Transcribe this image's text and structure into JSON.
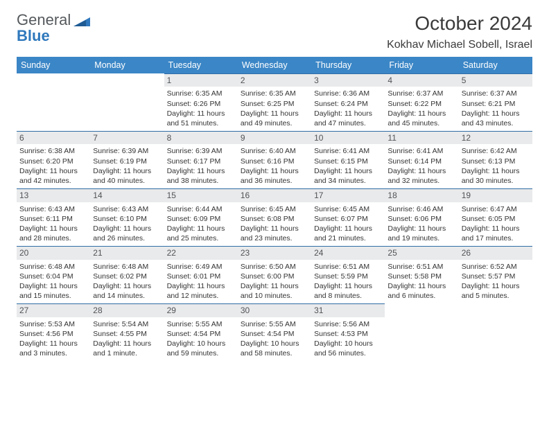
{
  "brand": {
    "part1": "General",
    "part2": "Blue"
  },
  "title": "October 2024",
  "location": "Kokhav Michael Sobell, Israel",
  "colors": {
    "header_bg": "#3b86c6",
    "banner_bg": "#e9eaeb",
    "banner_border": "#2f6da5",
    "text": "#333333",
    "brand_gray": "#55595c",
    "brand_blue": "#2f78bd"
  },
  "weekdays": [
    "Sunday",
    "Monday",
    "Tuesday",
    "Wednesday",
    "Thursday",
    "Friday",
    "Saturday"
  ],
  "weeks": [
    [
      null,
      null,
      {
        "n": "1",
        "sr": "Sunrise: 6:35 AM",
        "ss": "Sunset: 6:26 PM",
        "dl": "Daylight: 11 hours and 51 minutes."
      },
      {
        "n": "2",
        "sr": "Sunrise: 6:35 AM",
        "ss": "Sunset: 6:25 PM",
        "dl": "Daylight: 11 hours and 49 minutes."
      },
      {
        "n": "3",
        "sr": "Sunrise: 6:36 AM",
        "ss": "Sunset: 6:24 PM",
        "dl": "Daylight: 11 hours and 47 minutes."
      },
      {
        "n": "4",
        "sr": "Sunrise: 6:37 AM",
        "ss": "Sunset: 6:22 PM",
        "dl": "Daylight: 11 hours and 45 minutes."
      },
      {
        "n": "5",
        "sr": "Sunrise: 6:37 AM",
        "ss": "Sunset: 6:21 PM",
        "dl": "Daylight: 11 hours and 43 minutes."
      }
    ],
    [
      {
        "n": "6",
        "sr": "Sunrise: 6:38 AM",
        "ss": "Sunset: 6:20 PM",
        "dl": "Daylight: 11 hours and 42 minutes."
      },
      {
        "n": "7",
        "sr": "Sunrise: 6:39 AM",
        "ss": "Sunset: 6:19 PM",
        "dl": "Daylight: 11 hours and 40 minutes."
      },
      {
        "n": "8",
        "sr": "Sunrise: 6:39 AM",
        "ss": "Sunset: 6:17 PM",
        "dl": "Daylight: 11 hours and 38 minutes."
      },
      {
        "n": "9",
        "sr": "Sunrise: 6:40 AM",
        "ss": "Sunset: 6:16 PM",
        "dl": "Daylight: 11 hours and 36 minutes."
      },
      {
        "n": "10",
        "sr": "Sunrise: 6:41 AM",
        "ss": "Sunset: 6:15 PM",
        "dl": "Daylight: 11 hours and 34 minutes."
      },
      {
        "n": "11",
        "sr": "Sunrise: 6:41 AM",
        "ss": "Sunset: 6:14 PM",
        "dl": "Daylight: 11 hours and 32 minutes."
      },
      {
        "n": "12",
        "sr": "Sunrise: 6:42 AM",
        "ss": "Sunset: 6:13 PM",
        "dl": "Daylight: 11 hours and 30 minutes."
      }
    ],
    [
      {
        "n": "13",
        "sr": "Sunrise: 6:43 AM",
        "ss": "Sunset: 6:11 PM",
        "dl": "Daylight: 11 hours and 28 minutes."
      },
      {
        "n": "14",
        "sr": "Sunrise: 6:43 AM",
        "ss": "Sunset: 6:10 PM",
        "dl": "Daylight: 11 hours and 26 minutes."
      },
      {
        "n": "15",
        "sr": "Sunrise: 6:44 AM",
        "ss": "Sunset: 6:09 PM",
        "dl": "Daylight: 11 hours and 25 minutes."
      },
      {
        "n": "16",
        "sr": "Sunrise: 6:45 AM",
        "ss": "Sunset: 6:08 PM",
        "dl": "Daylight: 11 hours and 23 minutes."
      },
      {
        "n": "17",
        "sr": "Sunrise: 6:45 AM",
        "ss": "Sunset: 6:07 PM",
        "dl": "Daylight: 11 hours and 21 minutes."
      },
      {
        "n": "18",
        "sr": "Sunrise: 6:46 AM",
        "ss": "Sunset: 6:06 PM",
        "dl": "Daylight: 11 hours and 19 minutes."
      },
      {
        "n": "19",
        "sr": "Sunrise: 6:47 AM",
        "ss": "Sunset: 6:05 PM",
        "dl": "Daylight: 11 hours and 17 minutes."
      }
    ],
    [
      {
        "n": "20",
        "sr": "Sunrise: 6:48 AM",
        "ss": "Sunset: 6:04 PM",
        "dl": "Daylight: 11 hours and 15 minutes."
      },
      {
        "n": "21",
        "sr": "Sunrise: 6:48 AM",
        "ss": "Sunset: 6:02 PM",
        "dl": "Daylight: 11 hours and 14 minutes."
      },
      {
        "n": "22",
        "sr": "Sunrise: 6:49 AM",
        "ss": "Sunset: 6:01 PM",
        "dl": "Daylight: 11 hours and 12 minutes."
      },
      {
        "n": "23",
        "sr": "Sunrise: 6:50 AM",
        "ss": "Sunset: 6:00 PM",
        "dl": "Daylight: 11 hours and 10 minutes."
      },
      {
        "n": "24",
        "sr": "Sunrise: 6:51 AM",
        "ss": "Sunset: 5:59 PM",
        "dl": "Daylight: 11 hours and 8 minutes."
      },
      {
        "n": "25",
        "sr": "Sunrise: 6:51 AM",
        "ss": "Sunset: 5:58 PM",
        "dl": "Daylight: 11 hours and 6 minutes."
      },
      {
        "n": "26",
        "sr": "Sunrise: 6:52 AM",
        "ss": "Sunset: 5:57 PM",
        "dl": "Daylight: 11 hours and 5 minutes."
      }
    ],
    [
      {
        "n": "27",
        "sr": "Sunrise: 5:53 AM",
        "ss": "Sunset: 4:56 PM",
        "dl": "Daylight: 11 hours and 3 minutes."
      },
      {
        "n": "28",
        "sr": "Sunrise: 5:54 AM",
        "ss": "Sunset: 4:55 PM",
        "dl": "Daylight: 11 hours and 1 minute."
      },
      {
        "n": "29",
        "sr": "Sunrise: 5:55 AM",
        "ss": "Sunset: 4:54 PM",
        "dl": "Daylight: 10 hours and 59 minutes."
      },
      {
        "n": "30",
        "sr": "Sunrise: 5:55 AM",
        "ss": "Sunset: 4:54 PM",
        "dl": "Daylight: 10 hours and 58 minutes."
      },
      {
        "n": "31",
        "sr": "Sunrise: 5:56 AM",
        "ss": "Sunset: 4:53 PM",
        "dl": "Daylight: 10 hours and 56 minutes."
      },
      null,
      null
    ]
  ]
}
